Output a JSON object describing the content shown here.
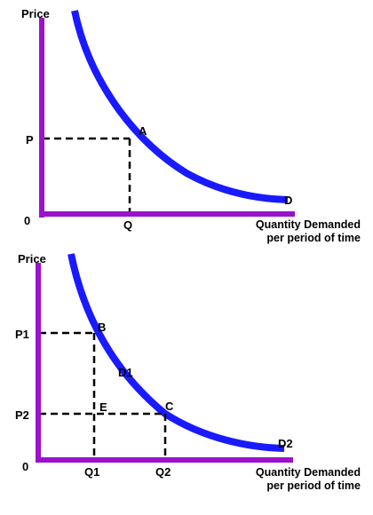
{
  "colors": {
    "axis": "#9b12cc",
    "curve": "#1a1aff",
    "guide": "#000000",
    "background": "#ffffff"
  },
  "graph1": {
    "y_axis_label": "Price",
    "origin_label": "0",
    "x_axis_label_line1": "Quantity Demanded",
    "x_axis_label_line2": "per period of time",
    "price_label": "P",
    "quantity_label": "Q",
    "point_label": "A",
    "curve_label": "D"
  },
  "graph2": {
    "y_axis_label": "Price",
    "origin_label": "0",
    "x_axis_label_line1": "Quantity Demanded",
    "x_axis_label_line2": "per period of time",
    "price1_label": "P1",
    "price2_label": "P2",
    "quantity1_label": "Q1",
    "quantity2_label": "Q2",
    "point_b_label": "B",
    "point_c_label": "C",
    "point_e_label": "E",
    "curve_mid_label": "D1",
    "curve_end_label": "D2"
  }
}
